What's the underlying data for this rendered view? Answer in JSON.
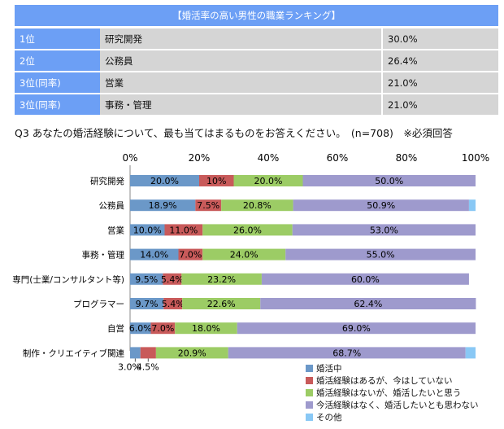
{
  "ranking": {
    "title": "【婚活率の高い男性の職業ランキング】",
    "rows": [
      {
        "rank": "1位",
        "job": "研究開発",
        "pct": "30.0%"
      },
      {
        "rank": "2位",
        "job": "公務員",
        "pct": "26.4%"
      },
      {
        "rank": "3位(同率)",
        "job": "営業",
        "pct": "21.0%"
      },
      {
        "rank": "3位(同率)",
        "job": "事務・管理",
        "pct": "21.0%"
      }
    ]
  },
  "question": "Q3 あなたの婚活経験について、最も当てはまるものをお答えください。　(n=708)　※必須回答",
  "chart_data": {
    "type": "bar",
    "orientation": "horizontal",
    "stacked": true,
    "xlim": [
      0,
      100
    ],
    "xticks": [
      "0%",
      "20%",
      "40%",
      "60%",
      "80%",
      "100%"
    ],
    "categories": [
      "研究開発",
      "公務員",
      "営業",
      "事務・管理",
      "専門(士業/コンサルタント等)",
      "プログラマー",
      "自営",
      "制作・クリエイティブ関連"
    ],
    "series": [
      {
        "name": "婚活中",
        "color": "#6b98c8",
        "values": [
          20.0,
          18.9,
          10.0,
          14.0,
          9.5,
          9.7,
          6.0,
          3.0
        ],
        "labels": [
          "20.0%",
          "18.9%",
          "10.0%",
          "14.0%",
          "9.5%",
          "9.7%",
          "6.0%",
          "3.0%"
        ]
      },
      {
        "name": "婚活経験はあるが、今はしていない",
        "color": "#c85a5a",
        "values": [
          10.0,
          7.5,
          11.0,
          7.0,
          5.4,
          5.4,
          7.0,
          4.5
        ],
        "labels": [
          "10%",
          "7.5%",
          "11.0%",
          "7.0%",
          "5.4%",
          "5.4%",
          "7.0%",
          "4.5%"
        ]
      },
      {
        "name": "婚活経験はないが、婚活したいと思う",
        "color": "#9ccc65",
        "values": [
          20.0,
          20.8,
          26.0,
          24.0,
          23.2,
          22.6,
          18.0,
          20.9
        ],
        "labels": [
          "20.0%",
          "20.8%",
          "26.0%",
          "24.0%",
          "23.2%",
          "22.6%",
          "18.0%",
          "20.9%"
        ]
      },
      {
        "name": "今活経験はなく、婚活したいとも思わない",
        "color": "#9e9acd",
        "values": [
          50.0,
          50.9,
          53.0,
          55.0,
          60.0,
          62.4,
          69.0,
          68.7
        ],
        "labels": [
          "50.0%",
          "50.9%",
          "53.0%",
          "55.0%",
          "60.0%",
          "62.4%",
          "69.0%",
          "68.7%"
        ]
      },
      {
        "name": "その他",
        "color": "#89c8f5",
        "values": [
          0,
          1.9,
          0,
          0,
          0,
          0,
          0,
          2.9
        ],
        "labels": [
          "",
          "",
          "",
          "",
          "",
          "",
          "",
          ""
        ]
      }
    ],
    "legend_position": "bottom-right"
  }
}
